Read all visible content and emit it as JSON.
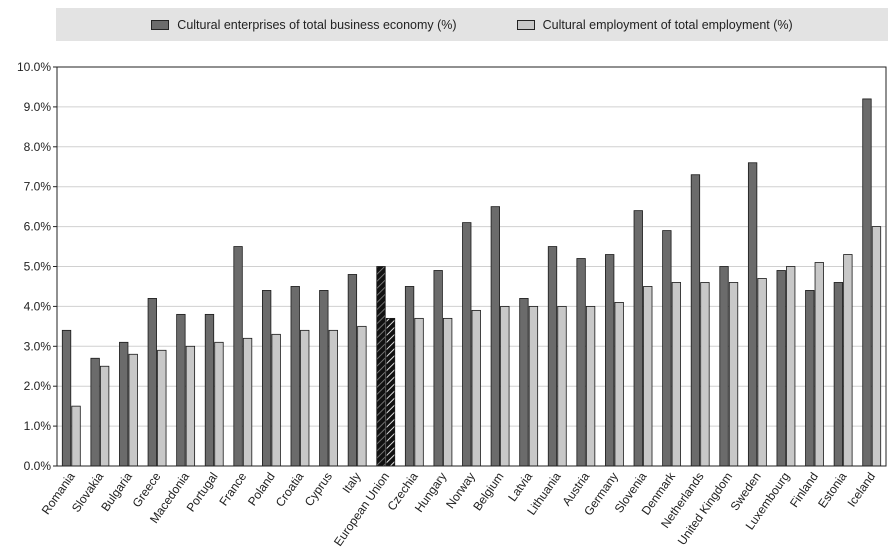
{
  "chart_data": {
    "type": "bar",
    "title": "",
    "xlabel": "",
    "ylabel": "",
    "ylim": [
      0,
      10
    ],
    "yticks": [
      "0.0%",
      "1.0%",
      "2.0%",
      "3.0%",
      "4.0%",
      "5.0%",
      "6.0%",
      "7.0%",
      "8.0%",
      "9.0%",
      "10.0%"
    ],
    "legend_position": "top",
    "highlight_category": "European Union",
    "categories": [
      "Romania",
      "Slovakia",
      "Bulgaria",
      "Greece",
      "Macedonia",
      "Portugal",
      "France",
      "Poland",
      "Croatia",
      "Cyprus",
      "Italy",
      "European Union",
      "Czechia",
      "Hungary",
      "Norway",
      "Belgium",
      "Latvia",
      "Lithuania",
      "Austria",
      "Germany",
      "Slovenia",
      "Denmark",
      "Netherlands",
      "United Kingdom",
      "Sweden",
      "Luxembourg",
      "Finland",
      "Estonia",
      "Iceland"
    ],
    "series": [
      {
        "name": "Cultural enterprises of total business economy (%)",
        "color": "#6b6b6b",
        "values": [
          3.4,
          2.7,
          3.1,
          4.2,
          3.8,
          3.8,
          5.5,
          4.4,
          4.5,
          4.4,
          4.8,
          5.0,
          4.5,
          4.9,
          6.1,
          6.5,
          4.2,
          5.5,
          5.2,
          5.3,
          6.4,
          5.9,
          7.3,
          5.0,
          7.6,
          4.9,
          4.4,
          4.6,
          9.2
        ]
      },
      {
        "name": "Cultural employment of total employment (%)",
        "color": "#c8c8c8",
        "values": [
          1.5,
          2.5,
          2.8,
          2.9,
          3.0,
          3.1,
          3.2,
          3.3,
          3.4,
          3.4,
          3.5,
          3.7,
          3.7,
          3.7,
          3.9,
          4.0,
          4.0,
          4.0,
          4.0,
          4.1,
          4.5,
          4.6,
          4.6,
          4.6,
          4.7,
          5.0,
          5.1,
          5.3,
          6.0
        ]
      }
    ]
  }
}
